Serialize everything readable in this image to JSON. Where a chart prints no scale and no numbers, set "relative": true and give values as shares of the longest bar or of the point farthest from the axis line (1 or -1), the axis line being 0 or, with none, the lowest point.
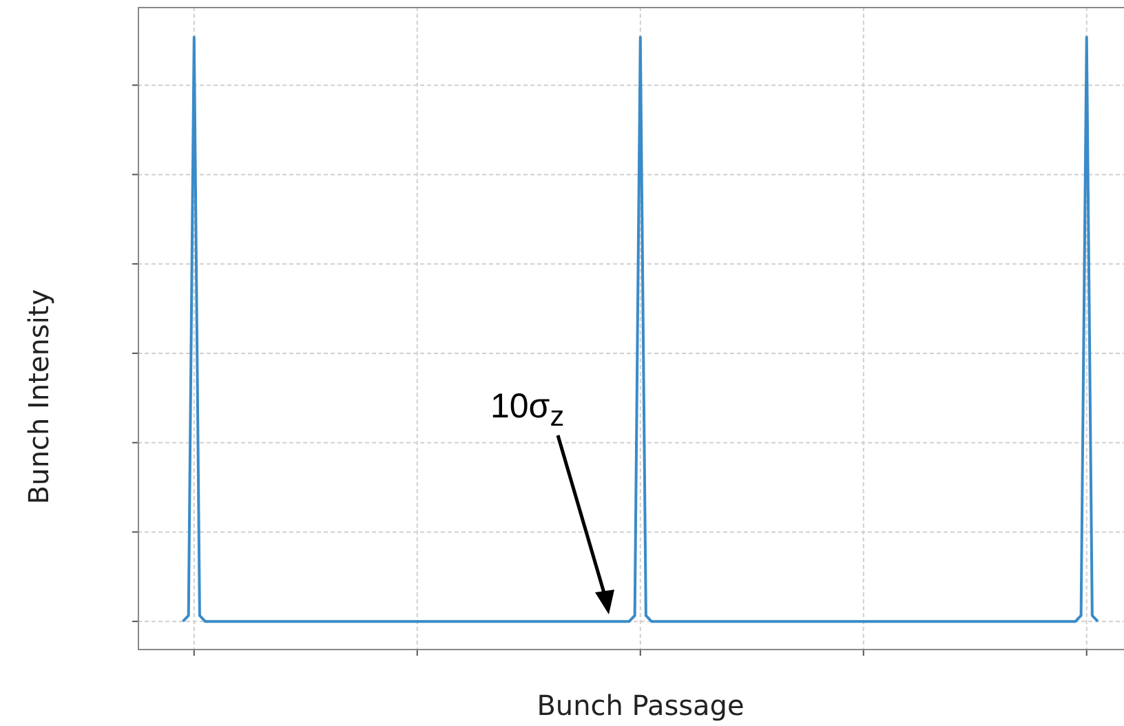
{
  "chart_data": {
    "type": "line",
    "relative": true,
    "xlabel": "Bunch Passage",
    "ylabel": "Bunch Intensity",
    "annotations": [
      "10σ$_{z}$"
    ],
    "grid": true,
    "legend": false,
    "marker": "none",
    "line_style": "solid",
    "categories": [
      null,
      null,
      null,
      null,
      null,
      null,
      null,
      null,
      null,
      null,
      null,
      null,
      null,
      null,
      null,
      null,
      null,
      null,
      null,
      null,
      null,
      null,
      null,
      null,
      null,
      null,
      null,
      null,
      null,
      null,
      null,
      null,
      null,
      null,
      null,
      null,
      null,
      null,
      null,
      null,
      null,
      null,
      null,
      null,
      null,
      null,
      null,
      null,
      null,
      null,
      null,
      null,
      null,
      null,
      null,
      null,
      null,
      null,
      null,
      null,
      null,
      null,
      null,
      null,
      null,
      null,
      null,
      null,
      null,
      null,
      null,
      null,
      null,
      null,
      null,
      null,
      null,
      null,
      null,
      null,
      null,
      null,
      null,
      null,
      null,
      null,
      null,
      null,
      null,
      null,
      null,
      null,
      null,
      null,
      null,
      null,
      null,
      null,
      null,
      null,
      null,
      null,
      null,
      null,
      null,
      null,
      null,
      null,
      null,
      null,
      null,
      null,
      null,
      null,
      null,
      null,
      null,
      null,
      null,
      null,
      null,
      null,
      null,
      null,
      null,
      null,
      null,
      null,
      null,
      null,
      null,
      null,
      null,
      null,
      null,
      null,
      null,
      null,
      null,
      null,
      null,
      null,
      null,
      null,
      null,
      null,
      null,
      null,
      null,
      null,
      null,
      null,
      null,
      null,
      null,
      null,
      null,
      null,
      null,
      null,
      null,
      null,
      null,
      null,
      null
    ],
    "series": [
      {
        "color": "#3a8bc8",
        "values": [
          0,
          0.01,
          1,
          0.01,
          0,
          0,
          0,
          0,
          0,
          0,
          0,
          0,
          0,
          0,
          0,
          0,
          0,
          0,
          0,
          0,
          0,
          0,
          0,
          0,
          0,
          0,
          0,
          0,
          0,
          0,
          0,
          0,
          0,
          0,
          0,
          0,
          0,
          0,
          0,
          0,
          0,
          0,
          0,
          0,
          0,
          0,
          0,
          0,
          0,
          0,
          0,
          0,
          0,
          0,
          0,
          0,
          0,
          0,
          0,
          0,
          0,
          0,
          0,
          0,
          0,
          0,
          0,
          0,
          0,
          0,
          0,
          0,
          0,
          0,
          0,
          0,
          0,
          0,
          0,
          0,
          0,
          0.01,
          1,
          0.01,
          0,
          0,
          0,
          0,
          0,
          0,
          0,
          0,
          0,
          0,
          0,
          0,
          0,
          0,
          0,
          0,
          0,
          0,
          0,
          0,
          0,
          0,
          0,
          0,
          0,
          0,
          0,
          0,
          0,
          0,
          0,
          0,
          0,
          0,
          0,
          0,
          0,
          0,
          0,
          0,
          0,
          0,
          0,
          0,
          0,
          0,
          0,
          0,
          0,
          0,
          0,
          0,
          0,
          0,
          0,
          0,
          0,
          0,
          0,
          0,
          0,
          0,
          0,
          0,
          0,
          0,
          0,
          0,
          0,
          0,
          0,
          0,
          0,
          0,
          0,
          0,
          0,
          0.01,
          1,
          0.01,
          0
        ]
      }
    ]
  }
}
